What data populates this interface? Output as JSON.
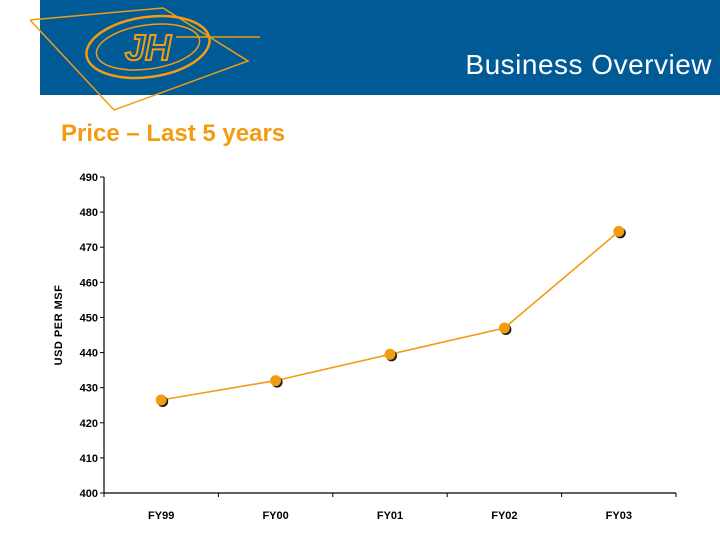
{
  "header": {
    "title": "Business Overview",
    "logo_text": "JH",
    "band_color": "#005a96",
    "accent_color": "#f29c12"
  },
  "slide": {
    "heading": "Price – Last 5 years"
  },
  "chart_data": {
    "type": "line",
    "categories": [
      "FY99",
      "FY00",
      "FY01",
      "FY02",
      "FY03"
    ],
    "series": [
      {
        "values": [
          426.5,
          432,
          439.5,
          447,
          474.5
        ],
        "color": "#f29c12"
      }
    ],
    "ylabel": "USD PER MSF",
    "xlabel": "",
    "ylim": [
      400,
      490
    ],
    "yticks": [
      400,
      410,
      420,
      430,
      440,
      450,
      460,
      470,
      480,
      490
    ],
    "grid": false,
    "legend": "none"
  }
}
